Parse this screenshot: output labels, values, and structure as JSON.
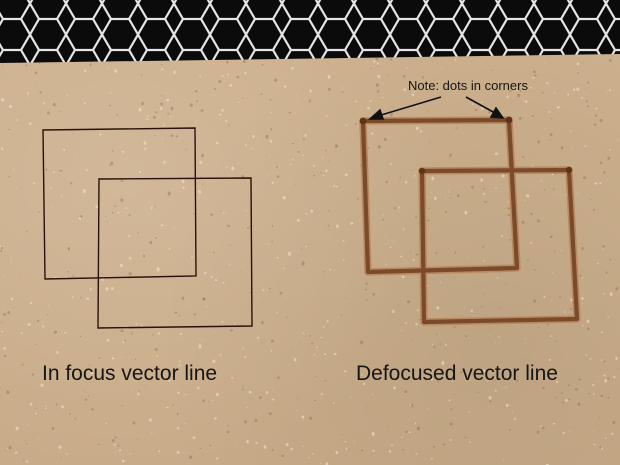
{
  "scene": {
    "description_colors": {
      "bed_mesh": "#0b0b0c",
      "mesh_wire": "#e3e3e3",
      "board": "#ccb08d",
      "thin_line": "#2a120c",
      "engraved_line": "#7a4a2a",
      "text": "#151515"
    }
  },
  "labels": {
    "left_caption": "In focus vector line",
    "right_caption": "Defocused vector line",
    "note": "Note: dots in corners"
  }
}
